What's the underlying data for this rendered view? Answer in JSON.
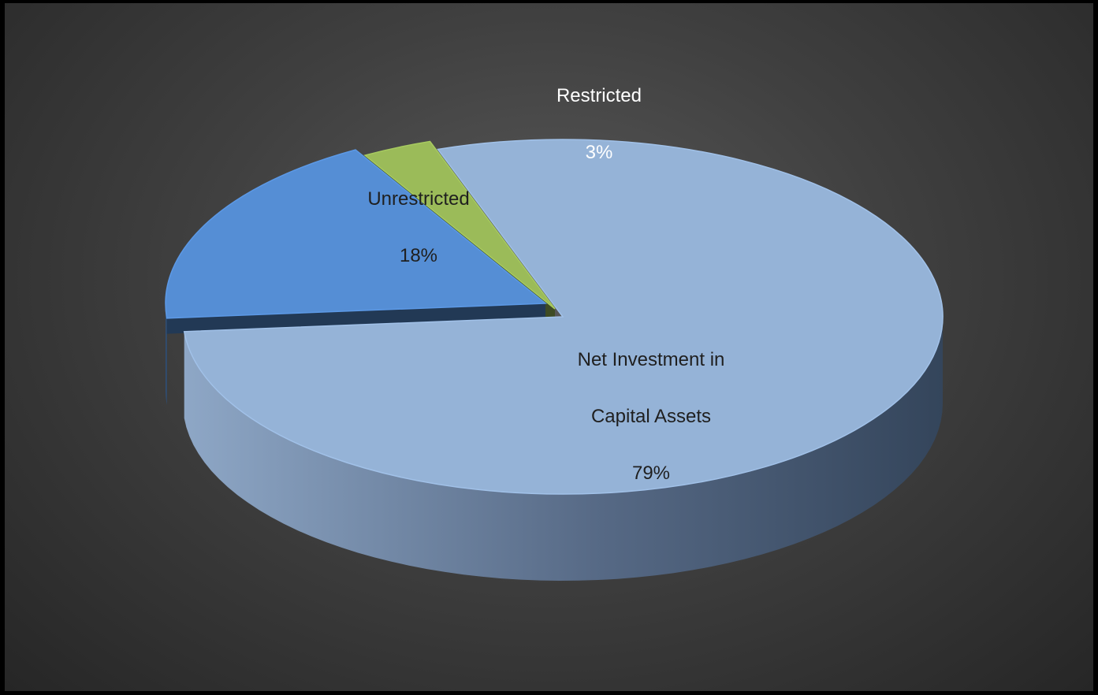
{
  "chart_data": {
    "type": "pie",
    "style": "3d-exploded",
    "slices": [
      {
        "label": "Net Investment in Capital Assets",
        "label_lines": [
          "Net Investment in",
          "Capital Assets"
        ],
        "value": 79,
        "percent_text": "79%",
        "color": "#95b3d7"
      },
      {
        "label": "Unrestricted",
        "label_lines": [
          "Unrestricted"
        ],
        "value": 18,
        "percent_text": "18%",
        "color": "#558ed5"
      },
      {
        "label": "Restricted",
        "label_lines": [
          "Restricted"
        ],
        "value": 3,
        "percent_text": "3%",
        "color": "#9bbb59"
      }
    ],
    "label_colors": {
      "inside": "#1f1f1f",
      "outside": "#ffffff"
    },
    "legend": "none"
  }
}
